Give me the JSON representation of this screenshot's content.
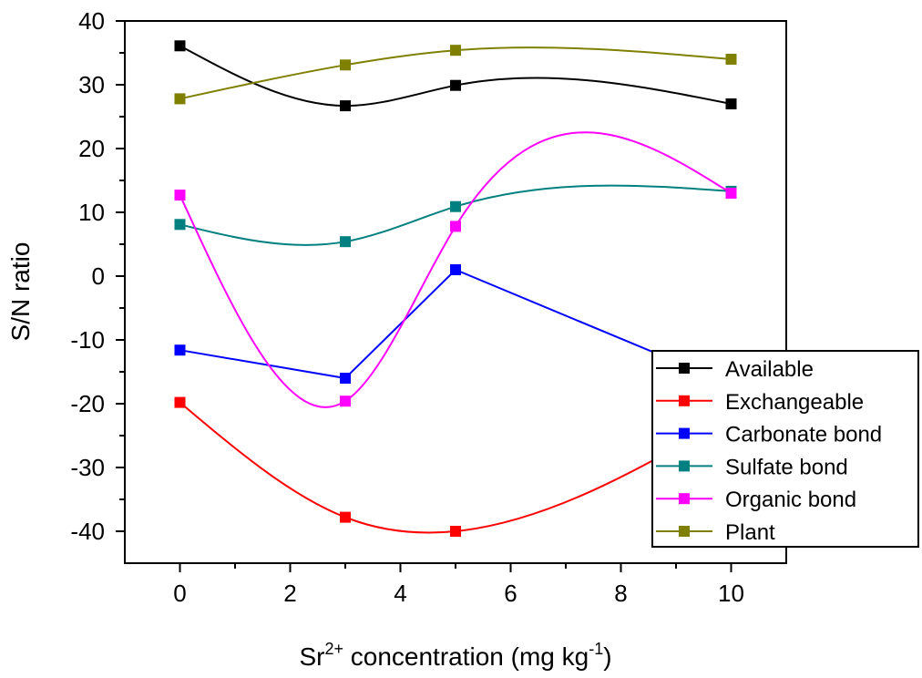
{
  "chart_data": {
    "type": "line",
    "x_label": [
      "Sr",
      "2+",
      " concentration (mg kg",
      "-1",
      ")"
    ],
    "y_label": "S/N ratio",
    "x": [
      0,
      3,
      5,
      10
    ],
    "series": [
      {
        "name": "Available",
        "color": "#000000",
        "interpolation": "spline",
        "values": [
          36.1,
          26.7,
          29.9,
          27.0
        ]
      },
      {
        "name": "Exchangeable",
        "color": "#ff0000",
        "interpolation": "spline",
        "values": [
          -19.8,
          -37.8,
          -40.0,
          -22
        ]
      },
      {
        "name": "Carbonate bond",
        "color": "#0000ff",
        "interpolation": "linear",
        "values": [
          -11.6,
          -16.0,
          1.0,
          -17
        ]
      },
      {
        "name": "Sulfate bond",
        "color": "#008080",
        "interpolation": "spline",
        "values": [
          8.1,
          5.4,
          10.9,
          13.3
        ]
      },
      {
        "name": "Organic bond",
        "color": "#ff00ff",
        "interpolation": "spline",
        "values": [
          12.7,
          -19.6,
          7.8,
          13.0
        ]
      },
      {
        "name": "Plant",
        "color": "#808000",
        "interpolation": "spline",
        "values": [
          27.8,
          33.1,
          35.4,
          34.0
        ]
      }
    ],
    "xlim": [
      -1,
      11
    ],
    "ylim": [
      -45,
      40
    ],
    "xticks": [
      0,
      2,
      4,
      6,
      8,
      10
    ],
    "xminorticks": [
      1,
      3,
      5,
      7,
      9
    ],
    "yticks": [
      -40,
      -30,
      -20,
      -10,
      0,
      10,
      20,
      30,
      40
    ],
    "yminorticks": [
      -35,
      -25,
      -15,
      -5,
      5,
      15,
      25,
      35
    ],
    "legend": "lower right"
  }
}
